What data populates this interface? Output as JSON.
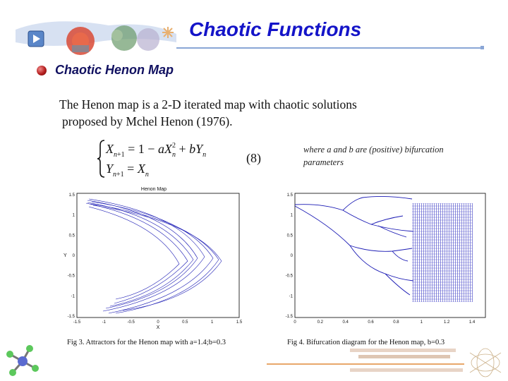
{
  "slide": {
    "title": "Chaotic Functions",
    "subtitle": "Chaotic Henon Map",
    "body_line1": "The Henon map is a 2-D iterated map with chaotic solutions",
    "body_line2": "proposed by Mchel Henon (1976).",
    "equation_number": "(8)",
    "equation_note": "where a and b are (positive)  bifurcation parameters",
    "title_color": "#1414c8"
  },
  "figure_left": {
    "title": "Henon Map",
    "xlabel": "X",
    "ylabel": "Y",
    "x_ticks": [
      "-1.5",
      "-1",
      "-0.5",
      "0",
      "0.5",
      "1",
      "1.5"
    ],
    "y_ticks": [
      "1.5",
      "1",
      "0.5",
      "0",
      "-0.5",
      "-1",
      "-1.5"
    ],
    "caption": "Fig 3. Attractors for the Henon map with   a=1.4;b=0.3"
  },
  "figure_right": {
    "x_ticks": [
      "0",
      "0.2",
      "0.4",
      "0.6",
      "0.8",
      "1",
      "1.2",
      "1.4"
    ],
    "y_ticks": [
      "1.5",
      "1",
      "0.5",
      "0",
      "-0.5",
      "-1",
      "-1.5"
    ],
    "caption": "Fig 4. Bifurcation diagram for the Henon map, b=0.3"
  },
  "icons": [
    "header-art-icon",
    "bullet-icon",
    "molecule-icon",
    "university-logo-icon"
  ]
}
